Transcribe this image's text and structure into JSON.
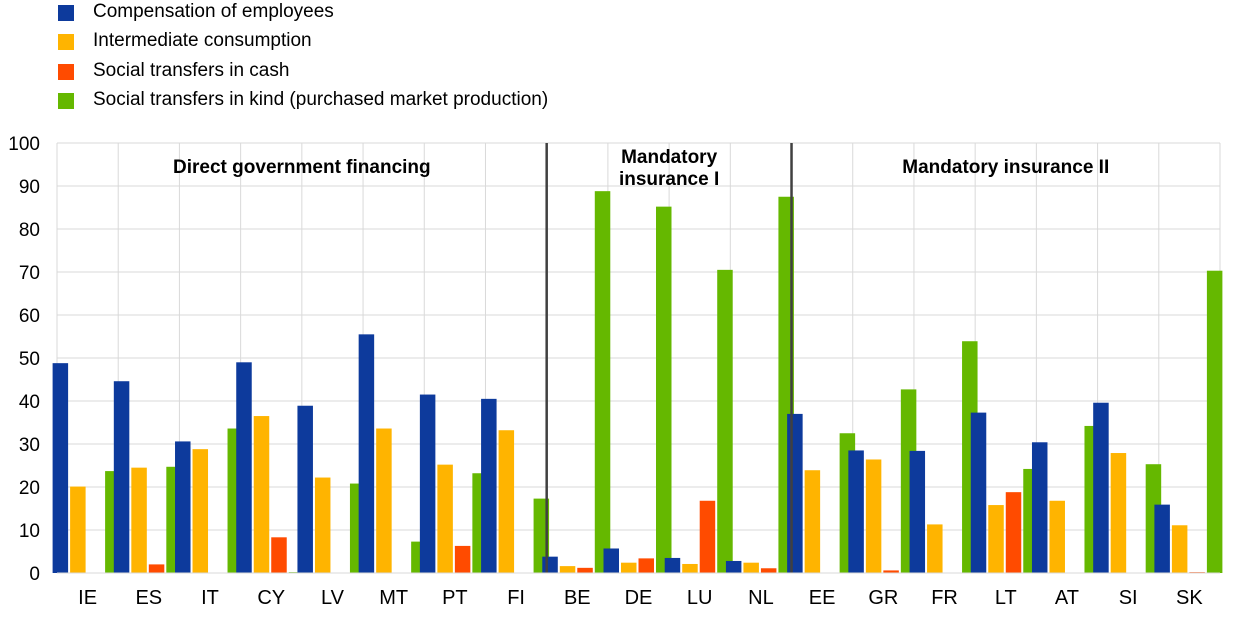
{
  "chart_data": {
    "type": "bar",
    "categories": [
      "IE",
      "ES",
      "IT",
      "CY",
      "LV",
      "MT",
      "PT",
      "FI",
      "BE",
      "DE",
      "LU",
      "NL",
      "EE",
      "GR",
      "FR",
      "LT",
      "AT",
      "SI",
      "SK"
    ],
    "series": [
      {
        "name": "Compensation of employees",
        "color": "#0d3a9c",
        "values": [
          48.8,
          44.6,
          30.6,
          49.0,
          38.9,
          55.5,
          41.5,
          40.5,
          3.8,
          5.7,
          3.5,
          2.8,
          37.0,
          28.5,
          28.4,
          37.3,
          30.4,
          39.6,
          15.9
        ]
      },
      {
        "name": "Intermediate consumption",
        "color": "#ffb400",
        "values": [
          20.1,
          24.5,
          28.8,
          36.5,
          22.2,
          33.6,
          25.2,
          33.2,
          1.6,
          2.4,
          2.1,
          2.4,
          23.9,
          26.4,
          11.3,
          15.8,
          16.8,
          27.9,
          11.1
        ]
      },
      {
        "name": "Social transfers in cash",
        "color": "#ff4b00",
        "values": [
          0,
          2.0,
          0,
          8.3,
          0,
          0,
          6.3,
          0,
          1.2,
          3.4,
          16.8,
          1.1,
          0,
          0.6,
          0,
          18.8,
          0,
          0,
          0.2
        ]
      },
      {
        "name": "Social transfers in kind (purchased market production)",
        "color": "#65b800",
        "values": [
          23.7,
          24.7,
          33.6,
          0.2,
          20.8,
          7.3,
          23.2,
          17.3,
          88.8,
          85.2,
          70.5,
          87.5,
          32.5,
          42.7,
          53.9,
          24.2,
          34.2,
          25.3,
          70.3
        ]
      }
    ],
    "y_ticks": [
      "0",
      "10",
      "20",
      "30",
      "40",
      "50",
      "60",
      "70",
      "80",
      "90",
      "100"
    ],
    "ylim": [
      0,
      100
    ],
    "grid": true,
    "legend_position": "top-left",
    "groups": [
      {
        "label_lines": [
          "Direct government financing"
        ],
        "from": "IE",
        "to": "FI"
      },
      {
        "label_lines": [
          "Mandatory",
          "insurance I"
        ],
        "from": "BE",
        "to": "NL"
      },
      {
        "label_lines": [
          "Mandatory insurance II"
        ],
        "from": "EE",
        "to": "SK"
      }
    ],
    "group_separators_after": [
      "FI",
      "NL"
    ]
  }
}
